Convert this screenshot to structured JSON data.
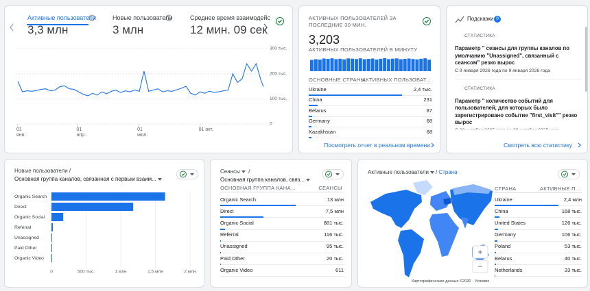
{
  "overview": {
    "tabs": [
      {
        "label": "Активные пользователи",
        "value": "3,3 млн"
      },
      {
        "label": "Новые пользователи",
        "value": "3 млн"
      },
      {
        "label": "Среднее время взаимодейс",
        "value": "12 мин. 09 сек"
      }
    ],
    "chart": {
      "type": "line",
      "color": "#1a73e8",
      "x": [
        0,
        7,
        14,
        21,
        28,
        35,
        42,
        49,
        56,
        63,
        70,
        77,
        84,
        91,
        98,
        105,
        112,
        119,
        126,
        133,
        140,
        147,
        154,
        161,
        168,
        175,
        182,
        189,
        196,
        203,
        210,
        217,
        224,
        231,
        238,
        245,
        252,
        259,
        266,
        273,
        280,
        287,
        294,
        301,
        308,
        315,
        322,
        329,
        336,
        343,
        350,
        357,
        364,
        368
      ],
      "values": [
        170000,
        128000,
        132000,
        130000,
        133000,
        138000,
        140000,
        132000,
        135000,
        148000,
        152000,
        140000,
        138000,
        128000,
        118000,
        112000,
        122000,
        115000,
        128000,
        120000,
        130000,
        135000,
        125000,
        132000,
        128000,
        135000,
        130000,
        210000,
        130000,
        135000,
        140000,
        128000,
        132000,
        130000,
        136000,
        142000,
        150000,
        122000,
        115000,
        128000,
        122000,
        130000,
        126000,
        128000,
        132000,
        135000,
        200000,
        165000,
        180000,
        240000,
        210000,
        240000,
        175000,
        148000
      ],
      "xlim": [
        -3,
        371
      ],
      "ylim": [
        0,
        300000
      ],
      "xticks": [
        {
          "value": 0,
          "label": "01 янв."
        },
        {
          "value": 90,
          "label": "01 апр."
        },
        {
          "value": 181,
          "label": "01 июл."
        },
        {
          "value": 273,
          "label": "01 окт."
        }
      ],
      "yticks": [
        0,
        {
          "value": 100000,
          "label": "100 тыс."
        },
        {
          "value": 200000,
          "label": "200 тыс."
        },
        {
          "value": 300000,
          "label": "300 тыс."
        }
      ],
      "grid": true
    }
  },
  "realtime": {
    "title": "АКТИВНЫХ ПОЛЬЗОВАТЕЛЕЙ ЗА ПОСЛЕДНИЕ 30 МИН.",
    "total": "3,203",
    "per_minute_label": "АКТИВНЫХ ПОЛЬЗОВАТЕЛЕЙ В МИНУТУ",
    "per_minute": {
      "type": "bar",
      "color": "#1a73e8",
      "values": [
        98,
        104,
        101,
        110,
        107,
        112,
        105,
        108,
        103,
        111,
        109,
        106,
        112,
        104,
        107,
        110,
        102,
        108,
        113,
        105,
        109,
        111,
        104,
        107,
        110,
        106,
        103,
        108,
        112,
        100
      ]
    },
    "table": {
      "columns": [
        "ОСНОВНЫЕ СТРАНЫ",
        "АКТИВНЫХ ПОЛЬЗОВАТ..."
      ],
      "rows": [
        {
          "name": "Ukraine",
          "value": 2400,
          "label": "2,4 тыс."
        },
        {
          "name": "China",
          "value": 231
        },
        {
          "name": "Belarus",
          "value": 87
        },
        {
          "name": "Germany",
          "value": 68
        },
        {
          "name": "Kazakhstan",
          "value": 68
        }
      ]
    },
    "link": "Посмотреть отчет в реальном времени"
  },
  "insights": {
    "title": "Подсказки",
    "badge": "0",
    "items": [
      {
        "tag": "СТАТИСТИКА",
        "text": "Параметр \" сеансы для группы каналов по умолчанию \"Unassigned\", связанный с сеансом\" резко вырос",
        "date": "С 9 января 2026 года по 9 января 2026 года"
      },
      {
        "tag": "СТАТИСТИКА",
        "text": "Параметр \" количество событий для пользователей, для которых было зарегистрировано событие \"first_visit\"\" резко вырос",
        "date": "С 28 октября 2025 года по 28 октября 2025 года"
      }
    ],
    "link": "Смотреть всю статистику"
  },
  "new_users": {
    "metric": "Новые пользователи /",
    "dimension": "Основная группа каналов, связанная с первым взаим...",
    "chart": {
      "type": "hbar",
      "color": "#1a73e8",
      "categories": [
        "Organic Search",
        "Direct",
        "Organic Social",
        "Referral",
        "Unassigned",
        "Paid Other",
        "Organic Video"
      ],
      "values": [
        1640000,
        1180000,
        170000,
        20000,
        4000,
        2000,
        1000
      ],
      "xlim": [
        0,
        2000000
      ],
      "xticks": [
        0,
        {
          "value": 500000,
          "label": "500 тыс."
        },
        {
          "value": 1000000,
          "label": "1 млн"
        },
        {
          "value": 1500000,
          "label": "1,5 млн"
        },
        {
          "value": 2000000,
          "label": "2 млн"
        }
      ],
      "grid": true
    }
  },
  "sessions": {
    "metric": "Сеансы",
    "separator": "/",
    "dimension": "Основная группа каналов, связ...",
    "table": {
      "columns": [
        "ОСНОВНАЯ ГРУППА КАНА...",
        "СЕАНСЫ"
      ],
      "rows": [
        {
          "name": "Organic Search",
          "value": 13000000,
          "label": "13 млн"
        },
        {
          "name": "Direct",
          "value": 7500000,
          "label": "7,5 млн"
        },
        {
          "name": "Organic Social",
          "value": 881000,
          "label": "881 тыс."
        },
        {
          "name": "Referral",
          "value": 116000,
          "label": "116 тыс."
        },
        {
          "name": "Unassigned",
          "value": 95000,
          "label": "95 тыс."
        },
        {
          "name": "Paid Other",
          "value": 20000,
          "label": "20 тыс."
        },
        {
          "name": "Organic Video",
          "value": 611
        }
      ]
    }
  },
  "countries": {
    "metric": "Активные пользователи",
    "separator": "/",
    "dimension": "Страна",
    "map": {
      "zoom_in": "+",
      "zoom_out": "−",
      "attribution": "Картографические данные ©2026",
      "terms": "Условия"
    },
    "table": {
      "columns": [
        "СТРАНА",
        "АКТИВНЫЕ П..."
      ],
      "rows": [
        {
          "name": "Ukraine",
          "value": 2400000,
          "label": "2,4 млн"
        },
        {
          "name": "China",
          "value": 168000,
          "label": "168 тыс."
        },
        {
          "name": "United States",
          "value": 126000,
          "label": "126 тыс."
        },
        {
          "name": "Germany",
          "value": 106000,
          "label": "106 тыс."
        },
        {
          "name": "Poland",
          "value": 53000,
          "label": "53 тыс."
        },
        {
          "name": "Belarus",
          "value": 40000,
          "label": "40 тыс."
        },
        {
          "name": "Netherlands",
          "value": 33000,
          "label": "33 тыс."
        }
      ]
    }
  }
}
